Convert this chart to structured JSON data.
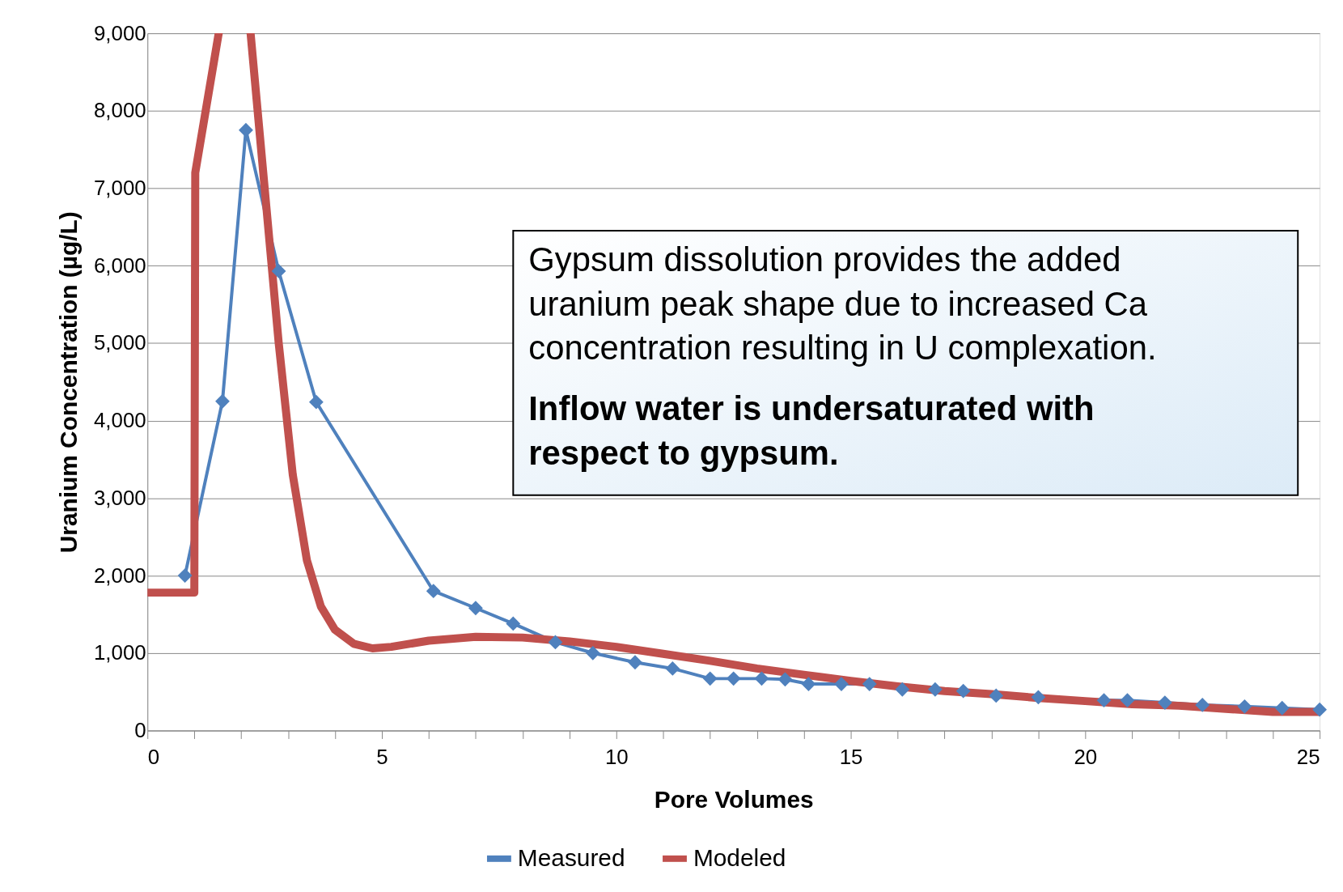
{
  "chart_data": {
    "type": "line",
    "xlabel": "Pore Volumes",
    "ylabel": "Uranium Concentration (µg/L)",
    "xlim": [
      0,
      25
    ],
    "ylim": [
      0,
      9000
    ],
    "xticks": [
      0,
      {
        "value": 1,
        "label": null
      },
      {
        "value": 2,
        "label": null
      },
      {
        "value": 3,
        "label": null
      },
      {
        "value": 4,
        "label": null
      },
      5,
      {
        "value": 6,
        "label": null
      },
      {
        "value": 7,
        "label": null
      },
      {
        "value": 8,
        "label": null
      },
      {
        "value": 9,
        "label": null
      },
      10,
      {
        "value": 11,
        "label": null
      },
      {
        "value": 12,
        "label": null
      },
      {
        "value": 13,
        "label": null
      },
      {
        "value": 14,
        "label": null
      },
      15,
      {
        "value": 16,
        "label": null
      },
      {
        "value": 17,
        "label": null
      },
      {
        "value": 18,
        "label": null
      },
      {
        "value": 19,
        "label": null
      },
      20,
      {
        "value": 21,
        "label": null
      },
      {
        "value": 22,
        "label": null
      },
      {
        "value": 23,
        "label": null
      },
      {
        "value": 24,
        "label": null
      },
      25
    ],
    "yticks": [
      {
        "value": 0,
        "label": "0"
      },
      {
        "value": 1000,
        "label": "1,000"
      },
      {
        "value": 2000,
        "label": "2,000"
      },
      {
        "value": 3000,
        "label": "3,000"
      },
      {
        "value": 4000,
        "label": "4,000"
      },
      {
        "value": 5000,
        "label": "5,000"
      },
      {
        "value": 6000,
        "label": "6,000"
      },
      {
        "value": 7000,
        "label": "7,000"
      },
      {
        "value": 8000,
        "label": "8,000"
      },
      {
        "value": 9000,
        "label": "9,000"
      }
    ],
    "grid": "y",
    "legend": "bottom",
    "annotations": [
      "Gypsum dissolution provides the added uranium peak shape due to increased Ca concentration resulting in U complexation.",
      "Inflow water is undersaturated with respect to gypsum."
    ],
    "series": [
      {
        "name": "Measured",
        "color": "#4f81bd",
        "marker": "diamond",
        "line_style": "solid",
        "x": [
          0.8,
          1.6,
          2.1,
          2.8,
          3.6,
          6.1,
          7.0,
          7.8,
          8.7,
          9.5,
          10.4,
          11.2,
          12.0,
          12.5,
          13.1,
          13.6,
          14.1,
          14.8,
          15.4,
          16.1,
          16.8,
          17.4,
          18.1,
          19.0,
          20.4,
          20.9,
          21.7,
          22.5,
          23.4,
          24.2,
          25.0
        ],
        "values": [
          2000,
          4250,
          7750,
          5930,
          4240,
          1800,
          1580,
          1380,
          1140,
          1000,
          880,
          800,
          670,
          670,
          670,
          660,
          600,
          600,
          600,
          530,
          530,
          510,
          450,
          430,
          390,
          390,
          360,
          330,
          310,
          290,
          270
        ]
      },
      {
        "name": "Modeled",
        "color": "#c0504d",
        "marker": "none",
        "line_style": "solid",
        "x": [
          0,
          1.0,
          1.02,
          1.52,
          1.85,
          2.2,
          2.5,
          2.8,
          3.1,
          3.4,
          3.7,
          4.0,
          4.4,
          4.8,
          5.2,
          6,
          7,
          8,
          9,
          10,
          11,
          12,
          13,
          14,
          15,
          16,
          17,
          18,
          19,
          20,
          21,
          22,
          23,
          24,
          25
        ],
        "values": [
          1780,
          1780,
          7200,
          9000,
          null,
          9000,
          7000,
          5000,
          3300,
          2200,
          1600,
          1300,
          1120,
          1060,
          1080,
          1160,
          1210,
          1200,
          1150,
          1080,
          990,
          900,
          800,
          720,
          640,
          570,
          510,
          470,
          420,
          380,
          340,
          320,
          280,
          240,
          240
        ]
      }
    ]
  }
}
